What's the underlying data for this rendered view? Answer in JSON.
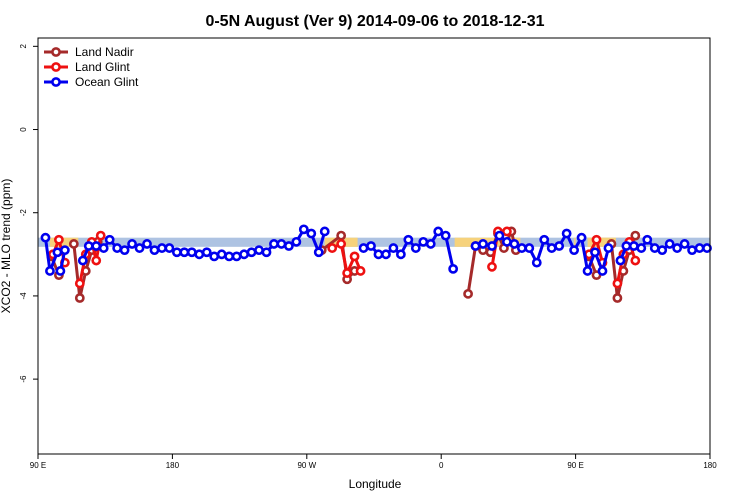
{
  "chart_data": {
    "type": "line",
    "title": "0-5N August (Ver 9)   2014-09-06 to 2018-12-31",
    "xlabel": "Longitude",
    "ylabel": "XCO2 - MLO trend (ppm)",
    "x_ticks": [
      {
        "value": 0,
        "label": "90 E"
      },
      {
        "value": 90,
        "label": "180"
      },
      {
        "value": 180,
        "label": "90 W"
      },
      {
        "value": 270,
        "label": "0"
      },
      {
        "value": 360,
        "label": "90 E"
      },
      {
        "value": 450,
        "label": "180"
      }
    ],
    "y_ticks": [
      {
        "value": 2,
        "label": "2"
      },
      {
        "value": 0,
        "label": "0"
      },
      {
        "value": -2,
        "label": "-2"
      },
      {
        "value": -4,
        "label": "-4"
      },
      {
        "value": -6,
        "label": "-6"
      }
    ],
    "xlim": [
      0,
      450
    ],
    "ylim": [
      -7.8,
      2.2
    ],
    "legend_position": "top-left",
    "bands": [
      {
        "from": 0,
        "to": 360,
        "y_top": -2.6,
        "y_bottom": -2.82,
        "color": "#aec3e2"
      },
      {
        "from": 8,
        "to": 27,
        "y_top": -2.6,
        "y_bottom": -2.82,
        "color": "#f6d27c"
      },
      {
        "from": 192,
        "to": 214,
        "y_top": -2.6,
        "y_bottom": -2.82,
        "color": "#f6d27c"
      },
      {
        "from": 279,
        "to": 323,
        "y_top": -2.6,
        "y_bottom": -2.82,
        "color": "#f6d27c"
      },
      {
        "from": 359,
        "to": 408,
        "y_top": -2.6,
        "y_bottom": -2.82,
        "color": "#f6d27c"
      },
      {
        "from": 360,
        "to": 450,
        "y_top": -2.6,
        "y_bottom": -2.82,
        "color": "#aec3e2"
      },
      {
        "from": 368,
        "to": 387,
        "y_top": -2.6,
        "y_bottom": -2.82,
        "color": "#f6d27c"
      }
    ],
    "series": [
      {
        "name": "Land Nadir",
        "color": "#a52a2a",
        "segments": [
          [
            [
              9,
              -3.05
            ],
            [
              14,
              -3.5
            ]
          ],
          [
            [
              24,
              -2.75
            ],
            [
              28,
              -4.05
            ],
            [
              32,
              -3.4
            ],
            [
              36,
              -2.9
            ],
            [
              40,
              -2.7
            ]
          ],
          [
            [
              190,
              -2.9
            ],
            [
              203,
              -2.55
            ],
            [
              207,
              -3.6
            ],
            [
              212,
              -3.4
            ]
          ],
          [
            [
              288,
              -3.95
            ],
            [
              293,
              -2.8
            ],
            [
              298,
              -2.9
            ],
            [
              303,
              -2.95
            ],
            [
              308,
              -2.5
            ],
            [
              312,
              -2.85
            ],
            [
              317,
              -2.45
            ],
            [
              320,
              -2.9
            ]
          ],
          [
            [
              369,
              -3.05
            ],
            [
              374,
              -3.5
            ]
          ],
          [
            [
              384,
              -2.75
            ],
            [
              388,
              -4.05
            ],
            [
              392,
              -3.4
            ],
            [
              396,
              -2.9
            ],
            [
              400,
              -2.55
            ]
          ]
        ]
      },
      {
        "name": "Land Glint",
        "color": "#ee1111",
        "segments": [
          [
            [
              10,
              -3.0
            ],
            [
              14,
              -2.65
            ],
            [
              18,
              -3.2
            ]
          ],
          [
            [
              28,
              -3.7
            ],
            [
              32,
              -3.0
            ],
            [
              36,
              -2.7
            ],
            [
              39,
              -3.15
            ],
            [
              42,
              -2.55
            ]
          ],
          [
            [
              197,
              -2.85
            ],
            [
              203,
              -2.75
            ],
            [
              207,
              -3.45
            ],
            [
              212,
              -3.05
            ],
            [
              216,
              -3.4
            ]
          ],
          [
            [
              304,
              -3.3
            ],
            [
              308,
              -2.45
            ],
            [
              314,
              -2.45
            ]
          ],
          [
            [
              369,
              -3.0
            ],
            [
              374,
              -2.65
            ],
            [
              378,
              -3.2
            ]
          ],
          [
            [
              388,
              -3.7
            ],
            [
              392,
              -3.0
            ],
            [
              396,
              -2.7
            ],
            [
              400,
              -3.15
            ]
          ]
        ]
      },
      {
        "name": "Ocean Glint",
        "color": "#0000ee",
        "segments": [
          [
            [
              5,
              -2.6
            ],
            [
              8,
              -3.4
            ],
            [
              13,
              -2.95
            ]
          ],
          [
            [
              15,
              -3.4
            ],
            [
              18,
              -2.9
            ]
          ],
          [
            [
              30,
              -3.15
            ],
            [
              34,
              -2.8
            ],
            [
              39,
              -2.8
            ],
            [
              44,
              -2.85
            ],
            [
              48,
              -2.65
            ],
            [
              53,
              -2.85
            ],
            [
              58,
              -2.9
            ],
            [
              63,
              -2.75
            ],
            [
              68,
              -2.85
            ],
            [
              73,
              -2.75
            ],
            [
              78,
              -2.9
            ],
            [
              83,
              -2.85
            ],
            [
              88,
              -2.85
            ],
            [
              93,
              -2.95
            ],
            [
              98,
              -2.95
            ],
            [
              103,
              -2.95
            ],
            [
              108,
              -3.0
            ],
            [
              113,
              -2.95
            ],
            [
              118,
              -3.05
            ],
            [
              123,
              -3.0
            ],
            [
              128,
              -3.05
            ],
            [
              133,
              -3.05
            ],
            [
              138,
              -3.0
            ],
            [
              143,
              -2.95
            ],
            [
              148,
              -2.9
            ],
            [
              153,
              -2.95
            ],
            [
              158,
              -2.75
            ],
            [
              163,
              -2.75
            ],
            [
              168,
              -2.8
            ],
            [
              173,
              -2.7
            ],
            [
              178,
              -2.4
            ],
            [
              183,
              -2.5
            ],
            [
              188,
              -2.95
            ],
            [
              192,
              -2.45
            ]
          ],
          [
            [
              218,
              -2.85
            ],
            [
              223,
              -2.8
            ],
            [
              228,
              -3.0
            ],
            [
              233,
              -3.0
            ],
            [
              238,
              -2.85
            ],
            [
              243,
              -3.0
            ],
            [
              248,
              -2.65
            ],
            [
              253,
              -2.85
            ],
            [
              258,
              -2.7
            ],
            [
              263,
              -2.75
            ],
            [
              268,
              -2.45
            ],
            [
              273,
              -2.55
            ],
            [
              278,
              -3.35
            ]
          ],
          [
            [
              293,
              -2.8
            ],
            [
              298,
              -2.75
            ],
            [
              304,
              -2.8
            ],
            [
              309,
              -2.55
            ],
            [
              314,
              -2.7
            ],
            [
              319,
              -2.75
            ],
            [
              324,
              -2.85
            ],
            [
              329,
              -2.85
            ],
            [
              334,
              -3.2
            ],
            [
              339,
              -2.65
            ],
            [
              344,
              -2.85
            ],
            [
              349,
              -2.8
            ],
            [
              354,
              -2.5
            ],
            [
              359,
              -2.9
            ],
            [
              364,
              -2.6
            ],
            [
              368,
              -3.4
            ],
            [
              373,
              -2.95
            ],
            [
              378,
              -3.4
            ],
            [
              382,
              -2.85
            ]
          ],
          [
            [
              390,
              -3.15
            ],
            [
              394,
              -2.8
            ],
            [
              399,
              -2.8
            ],
            [
              404,
              -2.85
            ],
            [
              408,
              -2.65
            ],
            [
              413,
              -2.85
            ],
            [
              418,
              -2.9
            ],
            [
              423,
              -2.75
            ],
            [
              428,
              -2.85
            ],
            [
              433,
              -2.75
            ],
            [
              438,
              -2.9
            ],
            [
              443,
              -2.85
            ],
            [
              448,
              -2.85
            ]
          ]
        ]
      }
    ]
  }
}
